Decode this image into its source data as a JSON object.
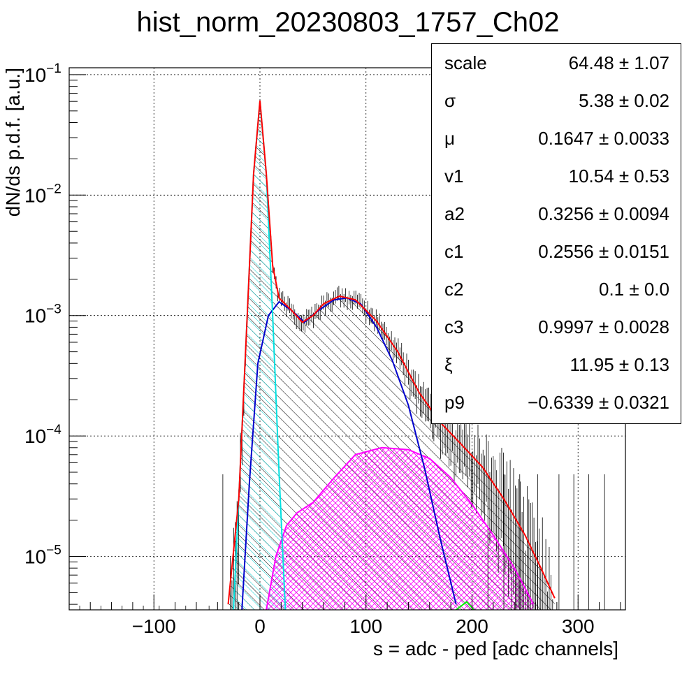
{
  "title": "hist_norm_20230803_1757_Ch02",
  "chart_data": {
    "type": "histogram",
    "xlabel": "s = adc - ped [adc channels]",
    "ylabel": "dN/ds p.d.f. [a.u.]",
    "xlim": [
      -180,
      340
    ],
    "ylim": [
      3.6e-06,
      0.12
    ],
    "yscale": "log",
    "grid": true,
    "xticks": [
      {
        "v": -100,
        "label": "−100"
      },
      {
        "v": 0,
        "label": "0"
      },
      {
        "v": 100,
        "label": "100"
      },
      {
        "v": 200,
        "label": "200"
      },
      {
        "v": 300,
        "label": "300"
      }
    ],
    "yticks": [
      {
        "v": 0.1,
        "label": "10",
        "exp": "−1"
      },
      {
        "v": 0.01,
        "label": "10",
        "exp": "−2"
      },
      {
        "v": 0.001,
        "label": "10",
        "exp": "−3"
      },
      {
        "v": 0.0001,
        "label": "10",
        "exp": "−4"
      },
      {
        "v": 1e-05,
        "label": "10",
        "exp": "−5"
      }
    ],
    "series": [
      {
        "role": "total_fit",
        "color": "#ff0000",
        "points": [
          [
            -30,
            4e-06
          ],
          [
            -20,
            3e-05
          ],
          [
            -12,
            0.001
          ],
          [
            -6,
            0.015
          ],
          [
            0,
            0.061
          ],
          [
            6,
            0.015
          ],
          [
            12,
            0.0026
          ],
          [
            18,
            0.0014
          ],
          [
            30,
            0.0011
          ],
          [
            40,
            0.00088
          ],
          [
            50,
            0.001
          ],
          [
            60,
            0.00125
          ],
          [
            75,
            0.00145
          ],
          [
            90,
            0.00135
          ],
          [
            110,
            0.0009
          ],
          [
            130,
            0.0005
          ],
          [
            150,
            0.00023
          ],
          [
            170,
            0.00013
          ],
          [
            190,
            8.5e-05
          ],
          [
            210,
            5.5e-05
          ],
          [
            230,
            3e-05
          ],
          [
            250,
            1.5e-05
          ],
          [
            265,
            8e-06
          ],
          [
            278,
            4.5e-06
          ]
        ]
      },
      {
        "role": "pedestal_gaussian",
        "color": "#00e0e0",
        "points": [
          [
            -25,
            3.6e-06
          ],
          [
            -20,
            3e-05
          ],
          [
            -12,
            0.001
          ],
          [
            -6,
            0.015
          ],
          [
            0,
            0.06
          ],
          [
            6,
            0.015
          ],
          [
            12,
            0.001
          ],
          [
            18,
            5e-05
          ],
          [
            24,
            3.6e-06
          ]
        ]
      },
      {
        "role": "first_peak",
        "color": "#0000cc",
        "points": [
          [
            -17,
            3.6e-06
          ],
          [
            -10,
            4e-05
          ],
          [
            -2,
            0.0004
          ],
          [
            8,
            0.001
          ],
          [
            18,
            0.0013
          ],
          [
            30,
            0.0011
          ],
          [
            42,
            0.00088
          ],
          [
            55,
            0.0011
          ],
          [
            70,
            0.00135
          ],
          [
            82,
            0.0014
          ],
          [
            95,
            0.00125
          ],
          [
            110,
            0.0008
          ],
          [
            125,
            0.00042
          ],
          [
            140,
            0.00018
          ],
          [
            155,
            5.5e-05
          ],
          [
            170,
            1.4e-05
          ],
          [
            185,
            4e-06
          ]
        ]
      },
      {
        "role": "second_peak",
        "color": "#ff00ff",
        "points": [
          [
            6,
            3.6e-06
          ],
          [
            15,
            1e-05
          ],
          [
            25,
            1.8e-05
          ],
          [
            35,
            2.3e-05
          ],
          [
            50,
            2.8e-05
          ],
          [
            70,
            4.5e-05
          ],
          [
            90,
            7e-05
          ],
          [
            115,
            8e-05
          ],
          [
            140,
            7.7e-05
          ],
          [
            160,
            6.5e-05
          ],
          [
            180,
            4.5e-05
          ],
          [
            200,
            2.7e-05
          ],
          [
            220,
            1.5e-05
          ],
          [
            240,
            8e-06
          ],
          [
            258,
            4e-06
          ]
        ]
      },
      {
        "role": "third_peak",
        "color": "#00ff00",
        "points": [
          [
            185,
            3.6e-06
          ],
          [
            195,
            4.2e-06
          ],
          [
            202,
            3.6e-06
          ]
        ]
      }
    ]
  },
  "stats": [
    {
      "name": "scale",
      "value": "64.48 ± 1.07"
    },
    {
      "name": "σ",
      "value": "5.38 ± 0.02"
    },
    {
      "name": "μ",
      "value": "0.1647 ± 0.0033"
    },
    {
      "name": "v1",
      "value": "10.54 ± 0.53"
    },
    {
      "name": "a2",
      "value": "0.3256 ± 0.0094"
    },
    {
      "name": "c1",
      "value": "0.2556 ± 0.0151"
    },
    {
      "name": "c2",
      "value": "0.1 ± 0.0"
    },
    {
      "name": "c3",
      "value": "0.9997 ± 0.0028"
    },
    {
      "name": "ξ",
      "value": "11.95 ± 0.13"
    },
    {
      "name": "p9",
      "value": "−0.6339 ± 0.0321"
    }
  ]
}
